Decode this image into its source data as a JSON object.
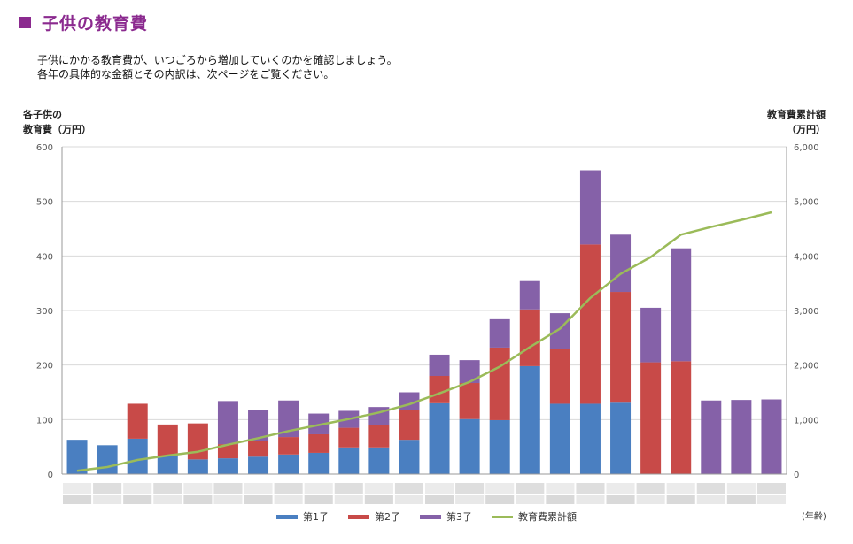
{
  "header": {
    "title": "子供の教育費",
    "intro_line1": "子供にかかる教育費が、いつごろから増加していくのかを確認しましょう。",
    "intro_line2": "各年の具体的な金額とその内訳は、次ページをご覧ください。"
  },
  "colors": {
    "title": "#8b2a8f",
    "series1": "#4a7fc1",
    "series2": "#c84a48",
    "series3": "#8561a8",
    "cumulative": "#9bbb59"
  },
  "chart_data": {
    "type": "bar",
    "stacked": true,
    "ylabel_left_line1": "各子供の",
    "ylabel_left_line2": "教育費（万円）",
    "ylabel_right_line1": "教育費累計額",
    "ylabel_right_line2": "（万円）",
    "xunit": "(年齢)",
    "y_left_ticks": [
      "0",
      "100",
      "200",
      "300",
      "400",
      "500",
      "600"
    ],
    "y_right_ticks": [
      "0",
      "1,000",
      "2,000",
      "3,000",
      "4,000",
      "5,000",
      "6,000"
    ],
    "ylim_left": [
      0,
      600
    ],
    "ylim_right": [
      0,
      6000
    ],
    "grid": true,
    "legend_position": "bottom",
    "categories_count": 24,
    "series": [
      {
        "name": "第1子",
        "values": [
          63,
          53,
          65,
          33,
          27,
          29,
          32,
          36,
          39,
          49,
          49,
          63,
          130,
          101,
          99,
          198,
          129,
          129,
          131,
          0,
          0,
          0,
          0,
          0
        ]
      },
      {
        "name": "第2子",
        "values": [
          0,
          0,
          64,
          58,
          66,
          26,
          29,
          32,
          34,
          36,
          41,
          54,
          50,
          66,
          133,
          104,
          100,
          292,
          203,
          205,
          207,
          0,
          0,
          0
        ]
      },
      {
        "name": "第3子",
        "values": [
          0,
          0,
          0,
          0,
          0,
          79,
          56,
          67,
          38,
          31,
          33,
          33,
          39,
          42,
          52,
          52,
          66,
          136,
          105,
          100,
          207,
          135,
          136,
          137
        ]
      }
    ],
    "cumulative": {
      "name": "教育費累計額",
      "values": [
        60,
        130,
        260,
        340,
        410,
        540,
        660,
        790,
        900,
        1010,
        1130,
        1280,
        1480,
        1690,
        1970,
        2330,
        2670,
        3230,
        3670,
        3980,
        4390,
        4530,
        4660,
        4800
      ]
    }
  }
}
